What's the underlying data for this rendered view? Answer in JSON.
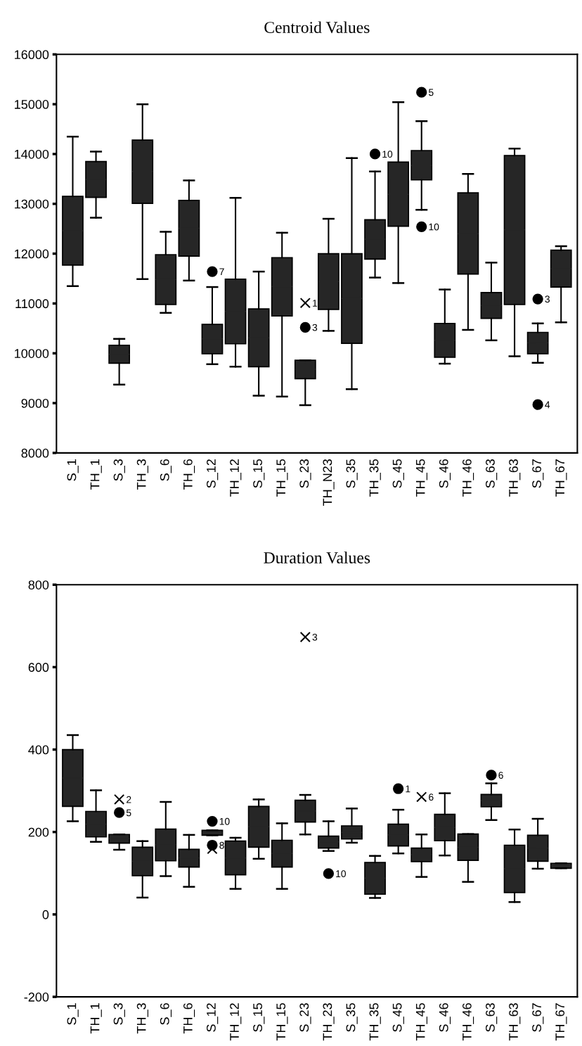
{
  "chart_data": [
    {
      "type": "box",
      "title": "Centroid Values",
      "categories": [
        "S_1",
        "TH_1",
        "S_3",
        "TH_3",
        "S_6",
        "TH_6",
        "S_12",
        "TH_12",
        "S_15",
        "TH_15",
        "S_23",
        "TH_N23",
        "S_35",
        "TH_35",
        "S_45",
        "TH_45",
        "S_46",
        "TH_46",
        "S_63",
        "TH_63",
        "S_67",
        "TH_67"
      ],
      "ylim": [
        8000,
        16000
      ],
      "yticks": [
        8000,
        9000,
        10000,
        11000,
        12000,
        13000,
        14000,
        15000,
        16000
      ],
      "series": [
        {
          "color": "#262626",
          "boxes": [
            {
              "low": 11350,
              "q1": 11770,
              "median": 12460,
              "q3": 13150,
              "high": 14350
            },
            {
              "low": 12720,
              "q1": 13130,
              "median": 13490,
              "q3": 13850,
              "high": 14050
            },
            {
              "low": 9370,
              "q1": 9800,
              "median": 9980,
              "q3": 10160,
              "high": 10290
            },
            {
              "low": 11490,
              "q1": 13010,
              "median": 13650,
              "q3": 14280,
              "high": 15000
            },
            {
              "low": 10810,
              "q1": 10980,
              "median": 11480,
              "q3": 11980,
              "high": 12440
            },
            {
              "low": 11460,
              "q1": 11950,
              "median": 12510,
              "q3": 13070,
              "high": 13470
            },
            {
              "low": 9780,
              "q1": 9990,
              "median": 10290,
              "q3": 10580,
              "high": 11330
            },
            {
              "low": 9730,
              "q1": 10190,
              "median": 10840,
              "q3": 11490,
              "high": 13120
            },
            {
              "low": 9150,
              "q1": 9730,
              "median": 10310,
              "q3": 10890,
              "high": 11640
            },
            {
              "low": 9130,
              "q1": 10750,
              "median": 11340,
              "q3": 11920,
              "high": 12420
            },
            {
              "low": 8960,
              "q1": 9490,
              "median": 9680,
              "q3": 9860,
              "high": 9860
            },
            {
              "low": 10450,
              "q1": 10880,
              "median": 11440,
              "q3": 12000,
              "high": 12700
            },
            {
              "low": 9280,
              "q1": 10200,
              "median": 11100,
              "q3": 12000,
              "high": 13920
            },
            {
              "low": 11520,
              "q1": 11890,
              "median": 12290,
              "q3": 12680,
              "high": 13650
            },
            {
              "low": 11410,
              "q1": 12550,
              "median": 13190,
              "q3": 13840,
              "high": 15040
            },
            {
              "low": 12880,
              "q1": 13480,
              "median": 13770,
              "q3": 14070,
              "high": 14660
            },
            {
              "low": 9790,
              "q1": 9920,
              "median": 10260,
              "q3": 10600,
              "high": 11280
            },
            {
              "low": 10470,
              "q1": 11590,
              "median": 12400,
              "q3": 13220,
              "high": 13600
            },
            {
              "low": 10260,
              "q1": 10700,
              "median": 10960,
              "q3": 11220,
              "high": 11820
            },
            {
              "low": 9940,
              "q1": 10980,
              "median": 12480,
              "q3": 13970,
              "high": 14110
            },
            {
              "low": 9810,
              "q1": 9990,
              "median": 10210,
              "q3": 10420,
              "high": 10600
            },
            {
              "low": 10620,
              "q1": 11330,
              "median": 11700,
              "q3": 12070,
              "high": 12150
            }
          ]
        },
        {
          "type": "scatter",
          "marker": "circle",
          "color": "#000000",
          "x": [
            "S_12",
            "S_23",
            "TH_35",
            "TH_45",
            "TH_45",
            "S_67",
            "S_67"
          ],
          "values": [
            11640,
            10520,
            14000,
            15240,
            12540,
            11090,
            8970
          ]
        },
        {
          "type": "scatter",
          "marker": "cross",
          "color": "#000000",
          "x": [
            "S_23"
          ],
          "values": [
            11010
          ]
        }
      ],
      "annotations": [
        {
          "text": "7",
          "x": "S_12",
          "y": 11640
        },
        {
          "text": "1",
          "x": "S_23",
          "y": 11010
        },
        {
          "text": "3",
          "x": "S_23",
          "y": 10520
        },
        {
          "text": "10",
          "x": "TH_35",
          "y": 14000
        },
        {
          "text": "5",
          "x": "TH_45",
          "y": 15240
        },
        {
          "text": "10",
          "x": "TH_45",
          "y": 12540
        },
        {
          "text": "3",
          "x": "S_67",
          "y": 11090
        },
        {
          "text": "4",
          "x": "S_67",
          "y": 8970
        }
      ]
    },
    {
      "type": "box",
      "title": "Duration Values",
      "categories": [
        "S_1",
        "TH_1",
        "S_3",
        "TH_3",
        "S_6",
        "TH_6",
        "S_12",
        "TH_12",
        "S_15",
        "TH_15",
        "S_23",
        "TH_23",
        "S_35",
        "TH_35",
        "S_45",
        "TH_45",
        "S_46",
        "TH_46",
        "S_63",
        "TH_63",
        "S_67",
        "TH_67"
      ],
      "ylim": [
        -200,
        800
      ],
      "yticks": [
        -200,
        0,
        200,
        400,
        600,
        800
      ],
      "series": [
        {
          "color": "#262626",
          "boxes": [
            {
              "low": 226,
              "q1": 262,
              "median": 331,
              "q3": 400,
              "high": 435
            },
            {
              "low": 176,
              "q1": 188,
              "median": 219,
              "q3": 250,
              "high": 301
            },
            {
              "low": 157,
              "q1": 173,
              "median": 184,
              "q3": 194,
              "high": 194
            },
            {
              "low": 41,
              "q1": 94,
              "median": 129,
              "q3": 163,
              "high": 178
            },
            {
              "low": 93,
              "q1": 130,
              "median": 169,
              "q3": 207,
              "high": 273
            },
            {
              "low": 67,
              "q1": 115,
              "median": 137,
              "q3": 158,
              "high": 193
            },
            {
              "low": 192,
              "q1": 192,
              "median": 198,
              "q3": 204,
              "high": 204
            },
            {
              "low": 62,
              "q1": 96,
              "median": 137,
              "q3": 178,
              "high": 186
            },
            {
              "low": 135,
              "q1": 163,
              "median": 213,
              "q3": 262,
              "high": 279
            },
            {
              "low": 62,
              "q1": 115,
              "median": 148,
              "q3": 180,
              "high": 221
            },
            {
              "low": 194,
              "q1": 224,
              "median": 251,
              "q3": 277,
              "high": 290
            },
            {
              "low": 154,
              "q1": 161,
              "median": 176,
              "q3": 190,
              "high": 226
            },
            {
              "low": 174,
              "q1": 183,
              "median": 199,
              "q3": 215,
              "high": 257
            },
            {
              "low": 40,
              "q1": 49,
              "median": 88,
              "q3": 126,
              "high": 142
            },
            {
              "low": 148,
              "q1": 166,
              "median": 193,
              "q3": 219,
              "high": 254
            },
            {
              "low": 91,
              "q1": 128,
              "median": 145,
              "q3": 161,
              "high": 194
            },
            {
              "low": 143,
              "q1": 179,
              "median": 211,
              "q3": 243,
              "high": 294
            },
            {
              "low": 79,
              "q1": 131,
              "median": 163,
              "q3": 195,
              "high": 195
            },
            {
              "low": 229,
              "q1": 261,
              "median": 276,
              "q3": 291,
              "high": 318
            },
            {
              "low": 30,
              "q1": 53,
              "median": 111,
              "q3": 168,
              "high": 206
            },
            {
              "low": 111,
              "q1": 129,
              "median": 161,
              "q3": 192,
              "high": 232
            },
            {
              "low": 112,
              "q1": 112,
              "median": 118,
              "q3": 124,
              "high": 124
            }
          ]
        },
        {
          "type": "scatter",
          "marker": "circle",
          "color": "#000000",
          "x": [
            "S_3",
            "S_12",
            "S_12",
            "TH_23",
            "S_45",
            "S_63"
          ],
          "values": [
            247,
            226,
            168,
            99,
            305,
            338
          ]
        },
        {
          "type": "scatter",
          "marker": "cross",
          "color": "#000000",
          "x": [
            "S_3",
            "S_12",
            "S_23",
            "TH_45"
          ],
          "values": [
            279,
            159,
            673,
            285
          ]
        }
      ],
      "annotations": [
        {
          "text": "2",
          "x": "S_3",
          "y": 279
        },
        {
          "text": "5",
          "x": "S_3",
          "y": 247
        },
        {
          "text": "10",
          "x": "S_12",
          "y": 226
        },
        {
          "text": "8",
          "x": "S_12",
          "y": 168
        },
        {
          "text": "3",
          "x": "S_23",
          "y": 673
        },
        {
          "text": "10",
          "x": "TH_23",
          "y": 99
        },
        {
          "text": "1",
          "x": "S_45",
          "y": 305
        },
        {
          "text": "6",
          "x": "TH_45",
          "y": 285
        },
        {
          "text": "6",
          "x": "S_63",
          "y": 338
        }
      ]
    }
  ]
}
